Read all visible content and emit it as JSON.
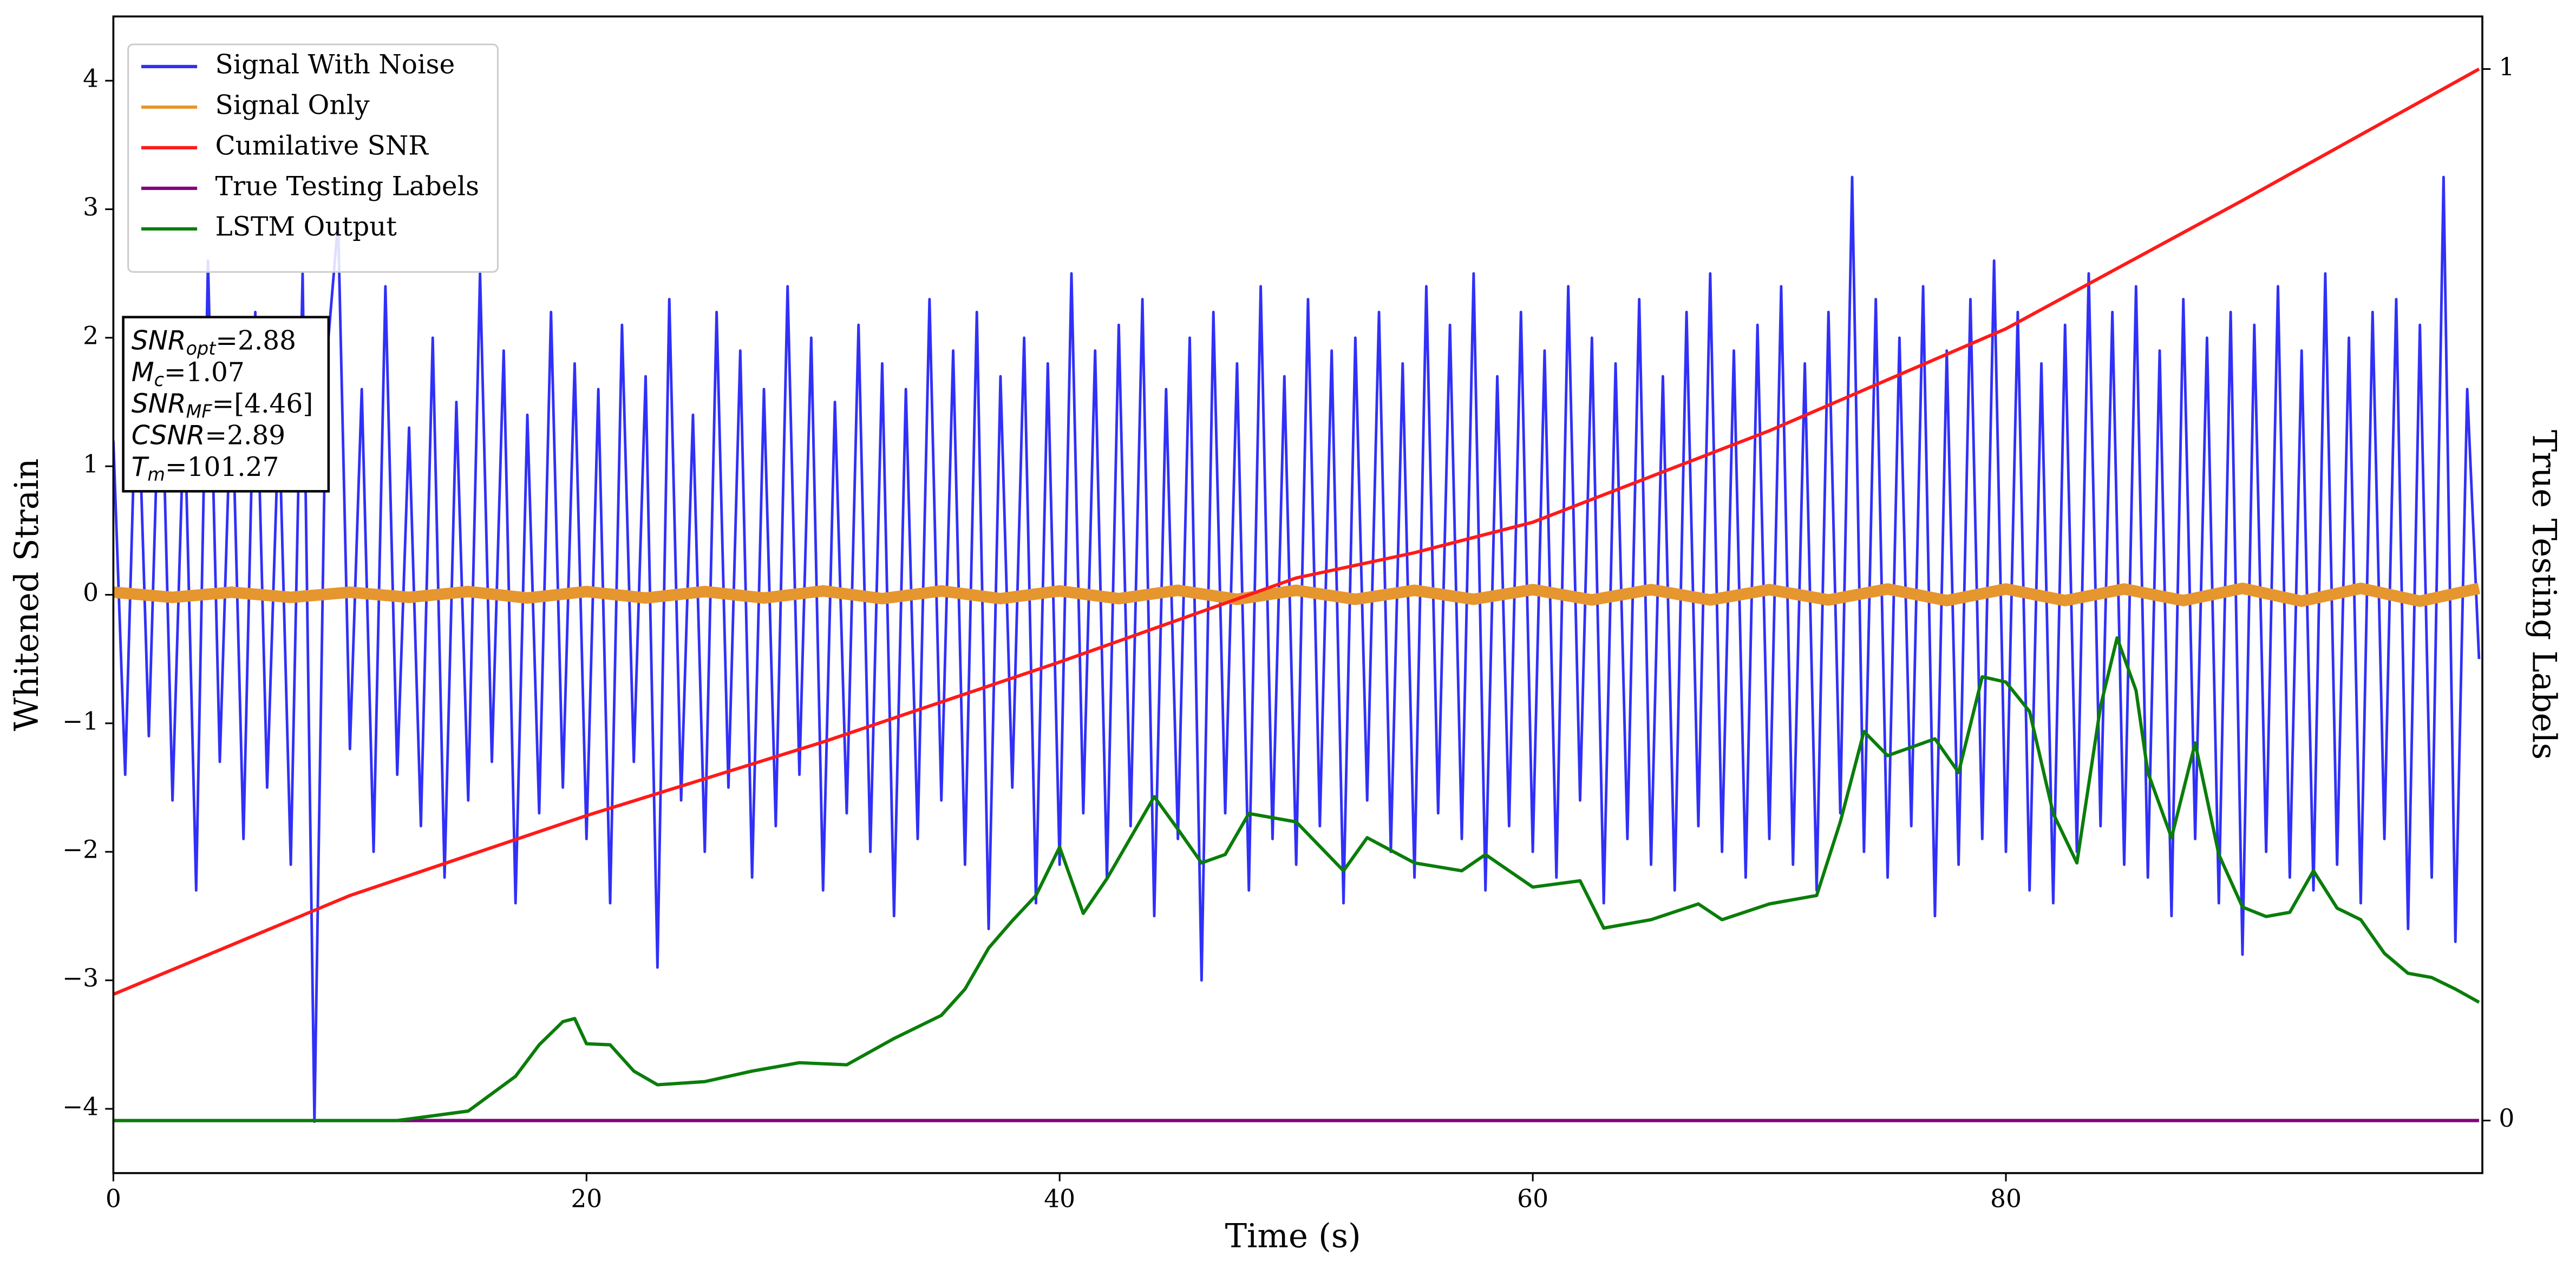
{
  "chart_data": {
    "type": "line",
    "xlabel": "Time (s)",
    "ylabel": "Whitened Strain",
    "y2label": "True Testing Labels",
    "xlim": [
      0,
      100.14
    ],
    "xticks": [
      0,
      20,
      40,
      60,
      80
    ],
    "ylim": [
      -4.5,
      4.5
    ],
    "yticks": [
      {
        "value": -4,
        "label": "−4"
      },
      {
        "value": -3,
        "label": "−3"
      },
      {
        "value": -2,
        "label": "−2"
      },
      {
        "value": -1,
        "label": "−1"
      },
      0,
      1,
      2,
      3,
      4
    ],
    "y2lim": [
      -0.05,
      1.05
    ],
    "y2ticks": [
      0,
      1
    ],
    "legend": "upper left",
    "annotation": [
      {
        "main": "SNR",
        "sub": "opt",
        "rest": "=2.88"
      },
      {
        "main": "M",
        "sub": "c",
        "rest": "=1.07"
      },
      {
        "main": "SNR",
        "sub": "MF",
        "rest": "=[4.46]"
      },
      {
        "main": "CSNR",
        "sub": "",
        "rest": "=2.89"
      },
      {
        "main": "T",
        "sub": "m",
        "rest": "=101.27"
      }
    ],
    "series": [
      {
        "name": "Signal With Noise",
        "color": "#3030f8",
        "width": 1.6,
        "x": [
          0,
          0.5,
          1,
          1.5,
          2,
          2.5,
          3,
          3.5,
          4,
          4.5,
          5,
          5.5,
          6,
          6.5,
          7,
          7.5,
          8,
          8.5,
          9,
          9.5,
          10,
          10.5,
          11,
          11.5,
          12,
          12.5,
          13,
          13.5,
          14,
          14.5,
          15,
          15.5,
          16,
          16.5,
          17,
          17.5,
          18,
          18.5,
          19,
          19.5,
          20,
          20.5,
          21,
          21.5,
          22,
          22.5,
          23,
          23.5,
          24,
          24.5,
          25,
          25.5,
          26,
          26.5,
          27,
          27.5,
          28,
          28.5,
          29,
          29.5,
          30,
          30.5,
          31,
          31.5,
          32,
          32.5,
          33,
          33.5,
          34,
          34.5,
          35,
          35.5,
          36,
          36.5,
          37,
          37.5,
          38,
          38.5,
          39,
          39.5,
          40,
          40.5,
          41,
          41.5,
          42,
          42.5,
          43,
          43.5,
          44,
          44.5,
          45,
          45.5,
          46,
          46.5,
          47,
          47.5,
          48,
          48.5,
          49,
          49.5,
          50,
          50.5,
          51,
          51.5,
          52,
          52.5,
          53,
          53.5,
          54,
          54.5,
          55,
          55.5,
          56,
          56.5,
          57,
          57.5,
          58,
          58.5,
          59,
          59.5,
          60,
          60.5,
          61,
          61.5,
          62,
          62.5,
          63,
          63.5,
          64,
          64.5,
          65,
          65.5,
          66,
          66.5,
          67,
          67.5,
          68,
          68.5,
          69,
          69.5,
          70,
          70.5,
          71,
          71.5,
          72,
          72.5,
          73,
          73.5,
          74,
          74.5,
          75,
          75.5,
          76,
          76.5,
          77,
          77.5,
          78,
          78.5,
          79,
          79.5,
          80,
          80.5,
          81,
          81.5,
          82,
          82.5,
          83,
          83.5,
          84,
          84.5,
          85,
          85.5,
          86,
          86.5,
          87,
          87.5,
          88,
          88.5,
          89,
          89.5,
          90,
          90.5,
          91,
          91.5,
          92,
          92.5,
          93,
          93.5,
          94,
          94.5,
          95,
          95.5,
          96,
          96.5,
          97,
          97.5,
          98,
          98.5,
          99,
          99.5,
          100
        ],
        "values": [
          1.2,
          -1.4,
          1.9,
          -1.1,
          2.1,
          -1.6,
          1.5,
          -2.3,
          2.6,
          -1.3,
          1.7,
          -1.9,
          2.2,
          -1.5,
          1.4,
          -2.1,
          2.5,
          -4.1,
          1.8,
          2.9,
          -1.2,
          1.6,
          -2.0,
          2.4,
          -1.4,
          1.3,
          -1.8,
          2.0,
          -2.2,
          1.5,
          -1.6,
          2.5,
          -1.3,
          1.9,
          -2.4,
          1.4,
          -1.7,
          2.2,
          -1.5,
          1.8,
          -1.9,
          1.6,
          -2.4,
          2.1,
          -1.3,
          1.7,
          -2.9,
          2.3,
          -1.6,
          1.4,
          -2.0,
          2.2,
          -1.5,
          1.9,
          -2.2,
          1.6,
          -1.8,
          2.4,
          -1.4,
          2.0,
          -2.3,
          1.5,
          -1.7,
          2.1,
          -2.0,
          1.8,
          -2.5,
          1.6,
          -1.9,
          2.3,
          -1.6,
          1.9,
          -2.1,
          2.2,
          -2.6,
          1.7,
          -1.5,
          2.0,
          -2.4,
          1.8,
          -2.1,
          2.5,
          -1.7,
          1.9,
          -2.2,
          2.1,
          -1.8,
          2.3,
          -2.5,
          1.6,
          -1.9,
          2.0,
          -3.0,
          2.2,
          -1.7,
          1.8,
          -2.3,
          2.4,
          -1.9,
          1.7,
          -2.1,
          2.3,
          -1.8,
          1.9,
          -2.4,
          2.0,
          -1.6,
          2.2,
          -2.0,
          1.8,
          -2.2,
          2.4,
          -1.7,
          2.1,
          -1.9,
          2.5,
          -2.3,
          1.7,
          -1.8,
          2.2,
          -2.0,
          1.9,
          -2.2,
          2.4,
          -1.6,
          2.0,
          -2.4,
          1.8,
          -1.9,
          2.3,
          -2.1,
          1.7,
          -2.3,
          2.2,
          -1.8,
          2.5,
          -2.0,
          1.9,
          -2.2,
          2.1,
          -1.9,
          2.4,
          -2.1,
          1.8,
          -2.3,
          2.2,
          -1.7,
          3.25,
          -2.0,
          2.3,
          -2.2,
          2.0,
          -1.8,
          2.4,
          -2.5,
          1.9,
          -2.1,
          2.3,
          -1.9,
          2.6,
          -2.0,
          2.2,
          -2.3,
          1.8,
          -2.4,
          2.1,
          -2.0,
          2.5,
          -1.8,
          2.2,
          -2.1,
          2.4,
          -2.2,
          1.9,
          -2.5,
          2.3,
          -1.9,
          2.0,
          -2.4,
          2.2,
          -2.8,
          2.1,
          -2.0,
          2.4,
          -2.2,
          1.9,
          -2.3,
          2.5,
          -2.1,
          2.0,
          -2.4,
          2.2,
          -1.9,
          2.3,
          -2.6,
          2.1,
          -2.2,
          3.25,
          -2.7,
          1.6,
          -0.5
        ]
      },
      {
        "name": "Signal Only",
        "color": "#e6962e",
        "width": 7,
        "x": [
          0,
          2.5,
          5,
          7.5,
          10,
          12.5,
          15,
          17.5,
          20,
          22.5,
          25,
          27.5,
          30,
          32.5,
          35,
          37.5,
          40,
          42.5,
          45,
          47.5,
          50,
          52.5,
          55,
          57.5,
          60,
          62.5,
          65,
          67.5,
          70,
          72.5,
          75,
          77.5,
          80,
          82.5,
          85,
          87.5,
          90,
          92.5,
          95,
          97.5,
          100
        ],
        "values": [
          0.02,
          -0.02,
          0.02,
          -0.02,
          0.02,
          -0.02,
          0.025,
          -0.025,
          0.025,
          -0.025,
          0.025,
          -0.025,
          0.03,
          -0.03,
          0.03,
          -0.03,
          0.03,
          -0.03,
          0.035,
          -0.035,
          0.035,
          -0.035,
          0.035,
          -0.035,
          0.04,
          -0.04,
          0.04,
          -0.04,
          0.04,
          -0.04,
          0.045,
          -0.045,
          0.045,
          -0.045,
          0.045,
          -0.045,
          0.05,
          -0.05,
          0.05,
          -0.05,
          0.05
        ]
      },
      {
        "name": "Cumilative SNR",
        "color": "#ff1a1a",
        "width": 2,
        "axis": "y2",
        "x": [
          0,
          10,
          20,
          30,
          40,
          50,
          55,
          60,
          70,
          80,
          90,
          100
        ],
        "values": [
          0.12,
          0.214,
          0.29,
          0.36,
          0.436,
          0.516,
          0.54,
          0.569,
          0.656,
          0.753,
          0.875,
          1.0
        ]
      },
      {
        "name": "True Testing Labels",
        "color": "#800080",
        "width": 2,
        "axis": "y2",
        "x": [
          0,
          100
        ],
        "values": [
          0,
          0
        ]
      },
      {
        "name": "LSTM Output",
        "color": "#0a7d0a",
        "width": 2,
        "axis": "y2",
        "x": [
          0,
          12,
          15,
          17,
          18,
          19,
          19.5,
          20,
          21,
          22,
          23,
          25,
          27,
          29,
          31,
          33,
          35,
          36,
          37,
          38,
          39,
          40,
          41,
          42,
          43,
          44,
          45,
          46,
          47,
          48,
          50,
          52,
          53,
          55,
          57,
          58,
          60,
          62,
          63,
          65,
          67,
          68,
          70,
          72,
          73,
          74,
          75,
          77,
          78,
          79,
          80,
          81,
          82,
          83,
          84,
          84.7,
          85.5,
          86,
          87,
          88,
          89,
          90,
          91,
          92,
          93,
          94,
          95,
          96,
          97,
          98,
          99,
          100
        ],
        "values": [
          0,
          0,
          0.009,
          0.042,
          0.072,
          0.094,
          0.097,
          0.073,
          0.072,
          0.047,
          0.034,
          0.037,
          0.047,
          0.055,
          0.053,
          0.078,
          0.1,
          0.125,
          0.164,
          0.19,
          0.214,
          0.26,
          0.197,
          0.23,
          0.269,
          0.308,
          0.277,
          0.245,
          0.253,
          0.292,
          0.284,
          0.2375,
          0.269,
          0.245,
          0.2375,
          0.253,
          0.222,
          0.228,
          0.183,
          0.191,
          0.206,
          0.191,
          0.206,
          0.214,
          0.284,
          0.37,
          0.347,
          0.363,
          0.331,
          0.422,
          0.417,
          0.389,
          0.292,
          0.245,
          0.394,
          0.459,
          0.409,
          0.331,
          0.269,
          0.359,
          0.253,
          0.203,
          0.194,
          0.198,
          0.2375,
          0.202,
          0.191,
          0.159,
          0.14,
          0.136,
          0.125,
          0.1125
        ]
      }
    ]
  }
}
